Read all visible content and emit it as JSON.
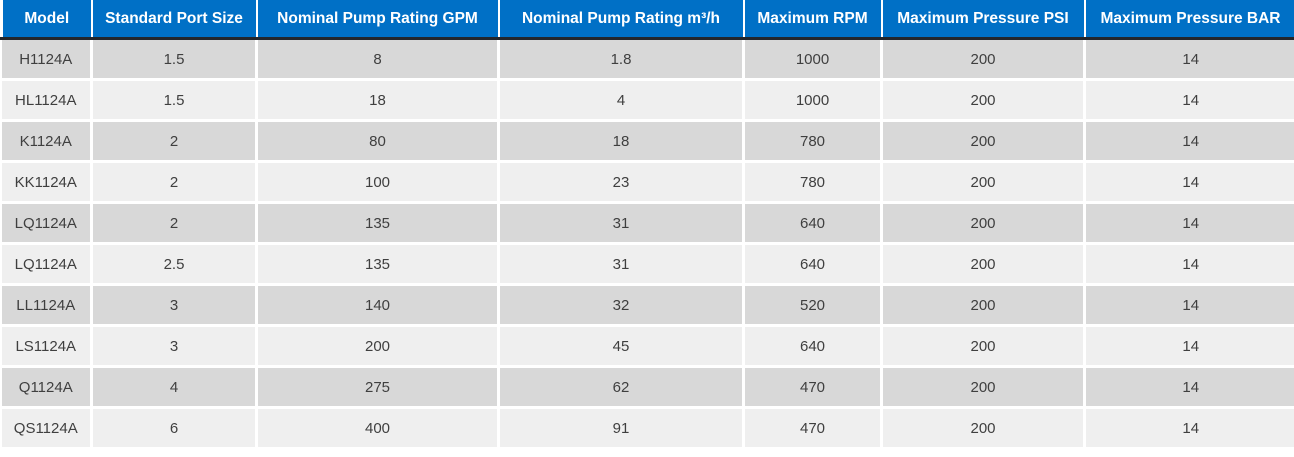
{
  "chart_data": {
    "type": "table",
    "headers": [
      "Model",
      "Standard Port Size",
      "Nominal Pump Rating GPM",
      "Nominal Pump Rating m³/h",
      "Maximum RPM",
      "Maximum Pressure PSI",
      "Maximum Pressure BAR"
    ],
    "rows": [
      [
        "H1124A",
        "1.5",
        "8",
        "1.8",
        "1000",
        "200",
        "14"
      ],
      [
        "HL1124A",
        "1.5",
        "18",
        "4",
        "1000",
        "200",
        "14"
      ],
      [
        "K1124A",
        "2",
        "80",
        "18",
        "780",
        "200",
        "14"
      ],
      [
        "KK1124A",
        "2",
        "100",
        "23",
        "780",
        "200",
        "14"
      ],
      [
        "LQ1124A",
        "2",
        "135",
        "31",
        "640",
        "200",
        "14"
      ],
      [
        "LQ1124A",
        "2.5",
        "135",
        "31",
        "640",
        "200",
        "14"
      ],
      [
        "LL1124A",
        "3",
        "140",
        "32",
        "520",
        "200",
        "14"
      ],
      [
        "LS1124A",
        "3",
        "200",
        "45",
        "640",
        "200",
        "14"
      ],
      [
        "Q1124A",
        "4",
        "275",
        "62",
        "470",
        "200",
        "14"
      ],
      [
        "QS1124A",
        "6",
        "400",
        "91",
        "470",
        "200",
        "14"
      ]
    ],
    "colors": {
      "header_bg": "#0070C6",
      "header_text": "#FFFFFF",
      "header_underline": "#23262B",
      "row_odd_bg": "#D8D8D8",
      "row_even_bg": "#EFEFEF",
      "body_text": "#3F3F3F",
      "separator": "#FFFFFF"
    }
  }
}
